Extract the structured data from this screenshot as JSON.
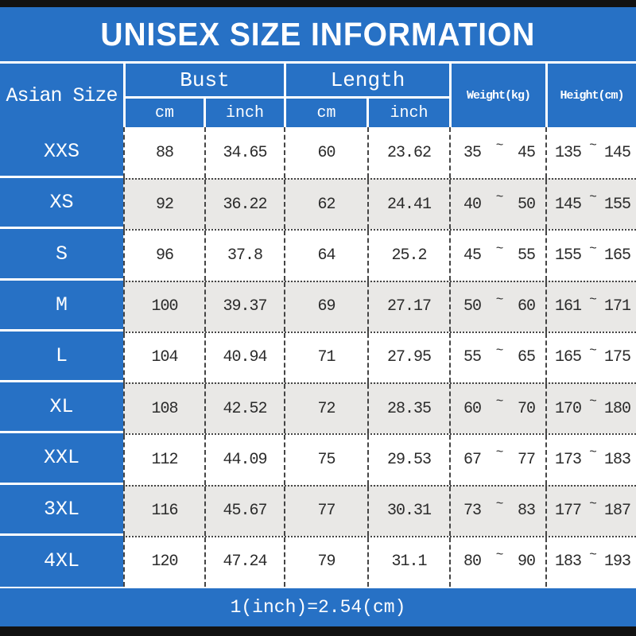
{
  "title": "UNISEX SIZE INFORMATION",
  "footer_note": "1(inch)=2.54(cm)",
  "table": {
    "size_column_header": "Asian Size",
    "bust_header": "Bust",
    "length_header": "Length",
    "unit_cm": "cm",
    "unit_inch": "inch",
    "weight_header": "Weight(kg)",
    "height_header": "Height(cm)",
    "tilde": "~"
  },
  "rows": [
    {
      "size": "XXS",
      "bust_cm": "88",
      "bust_inch": "34.65",
      "length_cm": "60",
      "length_inch": "23.62",
      "weight_min": "35",
      "weight_max": "45",
      "height_min": "135",
      "height_max": "145"
    },
    {
      "size": "XS",
      "bust_cm": "92",
      "bust_inch": "36.22",
      "length_cm": "62",
      "length_inch": "24.41",
      "weight_min": "40",
      "weight_max": "50",
      "height_min": "145",
      "height_max": "155"
    },
    {
      "size": "S",
      "bust_cm": "96",
      "bust_inch": "37.8",
      "length_cm": "64",
      "length_inch": "25.2",
      "weight_min": "45",
      "weight_max": "55",
      "height_min": "155",
      "height_max": "165"
    },
    {
      "size": "M",
      "bust_cm": "100",
      "bust_inch": "39.37",
      "length_cm": "69",
      "length_inch": "27.17",
      "weight_min": "50",
      "weight_max": "60",
      "height_min": "161",
      "height_max": "171"
    },
    {
      "size": "L",
      "bust_cm": "104",
      "bust_inch": "40.94",
      "length_cm": "71",
      "length_inch": "27.95",
      "weight_min": "55",
      "weight_max": "65",
      "height_min": "165",
      "height_max": "175"
    },
    {
      "size": "XL",
      "bust_cm": "108",
      "bust_inch": "42.52",
      "length_cm": "72",
      "length_inch": "28.35",
      "weight_min": "60",
      "weight_max": "70",
      "height_min": "170",
      "height_max": "180"
    },
    {
      "size": "XXL",
      "bust_cm": "112",
      "bust_inch": "44.09",
      "length_cm": "75",
      "length_inch": "29.53",
      "weight_min": "67",
      "weight_max": "77",
      "height_min": "173",
      "height_max": "183"
    },
    {
      "size": "3XL",
      "bust_cm": "116",
      "bust_inch": "45.67",
      "length_cm": "77",
      "length_inch": "30.31",
      "weight_min": "73",
      "weight_max": "83",
      "height_min": "177",
      "height_max": "187"
    },
    {
      "size": "4XL",
      "bust_cm": "120",
      "bust_inch": "47.24",
      "length_cm": "79",
      "length_inch": "31.1",
      "weight_min": "80",
      "weight_max": "90",
      "height_min": "183",
      "height_max": "193"
    }
  ],
  "chart_data": {
    "type": "table",
    "title": "UNISEX SIZE INFORMATION",
    "columns": [
      "Asian Size",
      "Bust cm",
      "Bust inch",
      "Length cm",
      "Length inch",
      "Weight(kg)",
      "Height(cm)"
    ],
    "rows": [
      [
        "XXS",
        88,
        34.65,
        60,
        23.62,
        "35~45",
        "135~145"
      ],
      [
        "XS",
        92,
        36.22,
        62,
        24.41,
        "40~50",
        "145~155"
      ],
      [
        "S",
        96,
        37.8,
        64,
        25.2,
        "45~55",
        "155~165"
      ],
      [
        "M",
        100,
        39.37,
        69,
        27.17,
        "50~60",
        "161~171"
      ],
      [
        "L",
        104,
        40.94,
        71,
        27.95,
        "55~65",
        "165~175"
      ],
      [
        "XL",
        108,
        42.52,
        72,
        28.35,
        "60~70",
        "170~180"
      ],
      [
        "XXL",
        112,
        44.09,
        75,
        29.53,
        "67~77",
        "173~183"
      ],
      [
        "3XL",
        116,
        45.67,
        77,
        30.31,
        "73~83",
        "177~187"
      ],
      [
        "4XL",
        120,
        47.24,
        79,
        31.1,
        "80~90",
        "183~193"
      ]
    ],
    "footnote": "1(inch)=2.54(cm)"
  },
  "colors": {
    "accent_blue": "#2771c5",
    "alt_row_gray": "#e9e8e6",
    "frame_black": "#121212",
    "text_dark": "#2b2b2b"
  }
}
